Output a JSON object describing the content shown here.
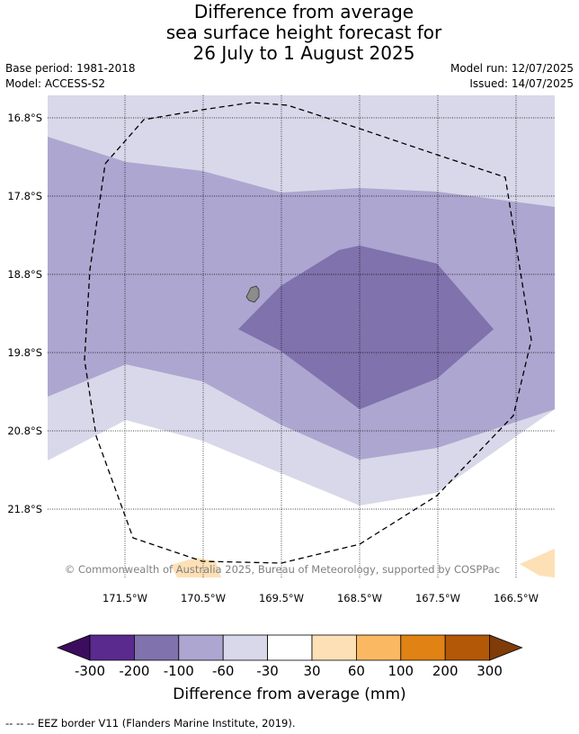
{
  "title": {
    "line1": "Difference from average",
    "line2": "sea surface height forecast for",
    "line3": "26 July to 1 August 2025"
  },
  "meta": {
    "base_period": "Base period: 1981-2018",
    "model": "Model: ACCESS-S2",
    "model_run": "Model run: 12/07/2025",
    "issued": "Issued: 14/07/2025"
  },
  "map": {
    "lat_labels": [
      "16.8°S",
      "17.8°S",
      "18.8°S",
      "19.8°S",
      "20.8°S",
      "21.8°S"
    ],
    "lon_labels": [
      "171.5°W",
      "170.5°W",
      "169.5°W",
      "168.5°W",
      "167.5°W",
      "166.5°W"
    ],
    "copyright": "© Commonwealth of Australia 2025, Bureau of Meteorology, supported by COSPPac",
    "colors": {
      "land": "#8c8c8c",
      "eez": "#000000"
    }
  },
  "colorbar": {
    "ticks": [
      "-300",
      "-200",
      "-100",
      "-60",
      "-30",
      "30",
      "60",
      "100",
      "200",
      "300"
    ],
    "colors": [
      "#5a2a8f",
      "#7f72ad",
      "#ada6d0",
      "#d8d8ea",
      "#ffffff",
      "#fee0b6",
      "#fbb863",
      "#e08214",
      "#b35806"
    ],
    "under_color": "#3c0d5e",
    "over_color": "#7f3b08",
    "label": "Difference from average (mm)"
  },
  "footer": "--  --  -- EEZ border V11 (Flanders Marine Institute, 2019)."
}
